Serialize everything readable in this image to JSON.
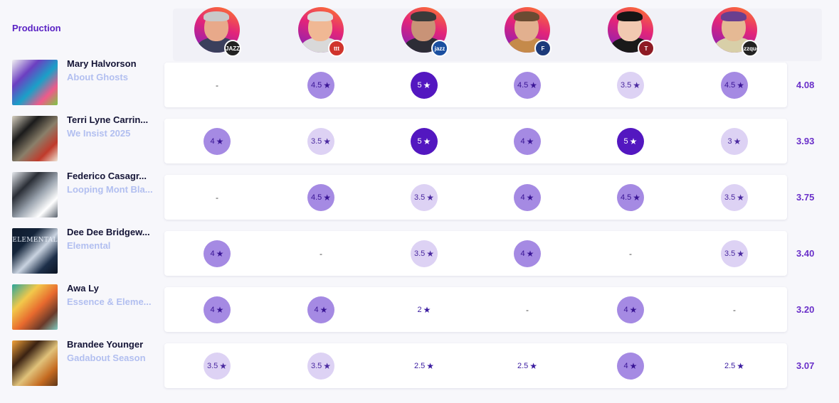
{
  "section_title": "Production",
  "critics": [
    {
      "name": "critic-1",
      "skin": "#e8a98a",
      "hair": "#c9c9c9",
      "body": "#3b3f5c",
      "badge_text": "JAZZ",
      "badge_bg": "#222222"
    },
    {
      "name": "critic-2",
      "skin": "#f0b894",
      "hair": "#dedede",
      "body": "#d9d9d9",
      "badge_text": "ttt",
      "badge_bg": "#d0342c"
    },
    {
      "name": "critic-3",
      "skin": "#c99377",
      "hair": "#3a3a3a",
      "body": "#2d2d36",
      "badge_text": "jazz",
      "badge_bg": "#1a4fa0"
    },
    {
      "name": "critic-4",
      "skin": "#e2b08f",
      "hair": "#6b4b32",
      "body": "#c58a4a",
      "badge_text": "F",
      "badge_bg": "#1c3a7a"
    },
    {
      "name": "critic-5",
      "skin": "#f1c9b1",
      "hair": "#151515",
      "body": "#1a1a1a",
      "badge_text": "T",
      "badge_bg": "#8e1b24"
    },
    {
      "name": "critic-6",
      "skin": "#e5b994",
      "hair": "#6a3f8e",
      "body": "#d8cfa8",
      "badge_text": "Jazzques",
      "badge_bg": "#222222"
    }
  ],
  "rows": [
    {
      "artist": "Mary Halvorson",
      "album": "About Ghosts",
      "average": "4.08",
      "cover": [
        "#f1f1f1",
        "#6c3fc1",
        "#1aa0c8",
        "#f05a8a",
        "#7ac943"
      ],
      "ratings": [
        {
          "value": "-",
          "level": 0
        },
        {
          "value": "4.5",
          "level": 4
        },
        {
          "value": "5",
          "level": 5
        },
        {
          "value": "4.5",
          "level": 4
        },
        {
          "value": "3.5",
          "level": 3
        },
        {
          "value": "4.5",
          "level": 4
        }
      ]
    },
    {
      "artist": "Terri Lyne Carrin...",
      "album": "We Insist 2025",
      "average": "3.93",
      "cover": [
        "#d9d2c2",
        "#1b1b1b",
        "#8a7f6a",
        "#c03a2b",
        "#efe6d6"
      ],
      "ratings": [
        {
          "value": "4",
          "level": 4
        },
        {
          "value": "3.5",
          "level": 3
        },
        {
          "value": "5",
          "level": 5
        },
        {
          "value": "4",
          "level": 4
        },
        {
          "value": "5",
          "level": 5
        },
        {
          "value": "3",
          "level": 3
        }
      ]
    },
    {
      "artist": "Federico Casagr...",
      "album": "Looping Mont Bla...",
      "average": "3.75",
      "cover": [
        "#e6e9ee",
        "#2a2e36",
        "#9aa3ae",
        "#ffffff",
        "#5a626d"
      ],
      "ratings": [
        {
          "value": "-",
          "level": 0
        },
        {
          "value": "4.5",
          "level": 4
        },
        {
          "value": "3.5",
          "level": 3
        },
        {
          "value": "4",
          "level": 4
        },
        {
          "value": "4.5",
          "level": 4
        },
        {
          "value": "3.5",
          "level": 3
        }
      ]
    },
    {
      "artist": "Dee Dee Bridgew...",
      "album": "Elemental",
      "average": "3.40",
      "cover": [
        "#0e1a2c",
        "#14243a",
        "#c9d3e0",
        "#1d2f49",
        "#0a1322"
      ],
      "cover_text": "ELEMENTAL",
      "ratings": [
        {
          "value": "4",
          "level": 4
        },
        {
          "value": "-",
          "level": 0
        },
        {
          "value": "3.5",
          "level": 3
        },
        {
          "value": "4",
          "level": 4
        },
        {
          "value": "-",
          "level": 0
        },
        {
          "value": "3.5",
          "level": 3
        }
      ]
    },
    {
      "artist": "Awa Ly",
      "album": "Essence & Eleme...",
      "average": "3.20",
      "cover": [
        "#2aa59a",
        "#f2c84b",
        "#e86a2e",
        "#6a3a2a",
        "#7fcbc0"
      ],
      "ratings": [
        {
          "value": "4",
          "level": 4
        },
        {
          "value": "4",
          "level": 4
        },
        {
          "value": "2",
          "level": 2
        },
        {
          "value": "-",
          "level": 0
        },
        {
          "value": "4",
          "level": 4
        },
        {
          "value": "-",
          "level": 0
        }
      ]
    },
    {
      "artist": "Brandee Younger",
      "album": "Gadabout Season",
      "average": "3.07",
      "cover": [
        "#f2a23a",
        "#3b2212",
        "#e0c27a",
        "#c46a20",
        "#5e3618"
      ],
      "ratings": [
        {
          "value": "3.5",
          "level": 3
        },
        {
          "value": "3.5",
          "level": 3
        },
        {
          "value": "2.5",
          "level": 2
        },
        {
          "value": "2.5",
          "level": 2
        },
        {
          "value": "4",
          "level": 4
        },
        {
          "value": "2.5",
          "level": 2
        }
      ]
    }
  ],
  "star_glyph": "★"
}
